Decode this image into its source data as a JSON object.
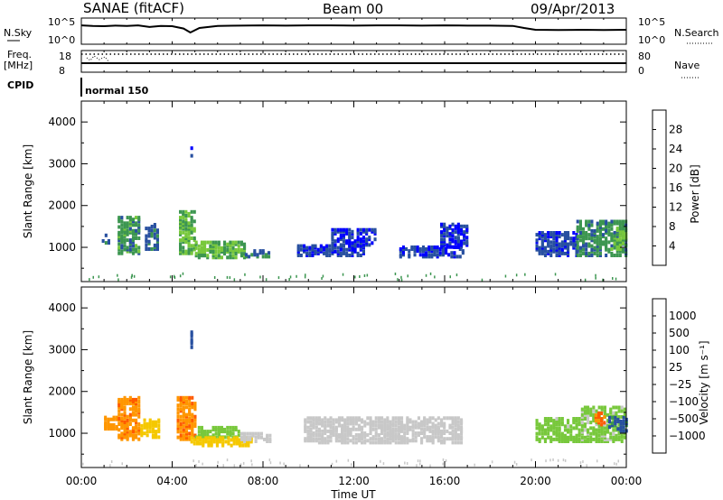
{
  "header": {
    "station": "SANAE (fitACF)",
    "beam": "Beam 00",
    "date": "09/Apr/2013"
  },
  "left_labels": {
    "nsky": "N.Sky",
    "freq_line1": "Freq.",
    "freq_line2": "[MHz]",
    "cpid": "CPID"
  },
  "right_labels": {
    "nsearch": "N.Search",
    "nave": "Nave"
  },
  "cpid_value": "normal 150",
  "chart_data": [
    {
      "type": "line",
      "panel": "noise",
      "left_axis": {
        "ticks": [
          "10^5",
          "10^0"
        ]
      },
      "right_axis": {
        "ticks": [
          "10^5",
          "10^0"
        ]
      },
      "series": [
        {
          "name": "N.Sky",
          "x": [
            0,
            0.5,
            1,
            1.5,
            2,
            2.5,
            3,
            3.5,
            4,
            4.5,
            4.8,
            5.2,
            6,
            7,
            8,
            9,
            10,
            11,
            12,
            13,
            14,
            15,
            16,
            17,
            18,
            19,
            19.5,
            20,
            21,
            22,
            23,
            24
          ],
          "y": [
            0.72,
            0.7,
            0.69,
            0.71,
            0.7,
            0.72,
            0.66,
            0.7,
            0.69,
            0.6,
            0.45,
            0.62,
            0.7,
            0.71,
            0.72,
            0.71,
            0.72,
            0.72,
            0.71,
            0.72,
            0.72,
            0.71,
            0.72,
            0.71,
            0.71,
            0.7,
            0.62,
            0.55,
            0.54,
            0.55,
            0.54,
            0.55
          ]
        }
      ]
    },
    {
      "type": "line",
      "panel": "frequency",
      "left_axis": {
        "ticks": [
          "18",
          "8"
        ]
      },
      "right_axis": {
        "ticks": [
          "80",
          "0"
        ]
      },
      "series": [
        {
          "name": "Freq.",
          "x": [
            0,
            24
          ],
          "y": [
            12,
            12
          ]
        },
        {
          "name": "Nave",
          "x": [
            0,
            24
          ],
          "y": [
            70,
            70
          ]
        }
      ]
    },
    {
      "type": "heatmap",
      "panel": "power",
      "xlabel": "",
      "ylabel": "Slant Range [km]",
      "xlim": [
        0,
        24
      ],
      "ylim": [
        180,
        4500
      ],
      "yticks": [
        "1000",
        "2000",
        "3000",
        "4000"
      ],
      "colorbar": {
        "label": "Power [dB]",
        "ticks": [
          "28",
          "24",
          "20",
          "16",
          "12",
          "8",
          "4"
        ],
        "colors": [
          "#ff0000",
          "#ff5a00",
          "#ff9600",
          "#f5c800",
          "#78c83c",
          "#3c9650",
          "#2850a0",
          "#0000ff"
        ]
      },
      "blobs": [
        {
          "t0": 0.9,
          "t1": 1.2,
          "r0": 1150,
          "r1": 1350,
          "v": 6
        },
        {
          "t0": 1.6,
          "t1": 2.5,
          "r0": 900,
          "r1": 1800,
          "v": 10
        },
        {
          "t0": 2.8,
          "t1": 3.4,
          "r0": 1000,
          "r1": 1600,
          "v": 7
        },
        {
          "t0": 4.3,
          "t1": 5.0,
          "r0": 900,
          "r1": 1900,
          "v": 12
        },
        {
          "t0": 4.8,
          "t1": 4.9,
          "r0": 3100,
          "r1": 3500,
          "v": 6
        },
        {
          "t0": 5.0,
          "t1": 7.2,
          "r0": 800,
          "r1": 1200,
          "v": 12
        },
        {
          "t0": 7.2,
          "t1": 8.3,
          "r0": 820,
          "r1": 1000,
          "v": 7
        },
        {
          "t0": 9.5,
          "t1": 12.5,
          "r0": 850,
          "r1": 1100,
          "v": 5
        },
        {
          "t0": 11.0,
          "t1": 13.0,
          "r0": 1100,
          "r1": 1500,
          "v": 4
        },
        {
          "t0": 14.0,
          "t1": 16.8,
          "r0": 820,
          "r1": 1050,
          "v": 5
        },
        {
          "t0": 15.8,
          "t1": 17.0,
          "r0": 1050,
          "r1": 1600,
          "v": 4
        },
        {
          "t0": 20.0,
          "t1": 21.8,
          "r0": 850,
          "r1": 1400,
          "v": 5
        },
        {
          "t0": 21.8,
          "t1": 24.0,
          "r0": 850,
          "r1": 1700,
          "v": 9
        },
        {
          "t0": 23.3,
          "t1": 24.0,
          "r0": 1000,
          "r1": 1500,
          "v": 12
        }
      ]
    },
    {
      "type": "heatmap",
      "panel": "velocity",
      "xlabel": "Time UT",
      "ylabel": "Slant Range [km]",
      "xlim": [
        0,
        24
      ],
      "ylim": [
        180,
        4500
      ],
      "xticks": [
        "00:00",
        "04:00",
        "08:00",
        "12:00",
        "16:00",
        "20:00",
        "00:00"
      ],
      "yticks": [
        "1000",
        "2000",
        "3000",
        "4000"
      ],
      "colorbar": {
        "label": "Velocity [m s⁻¹]",
        "ticks": [
          "1000",
          "500",
          "100",
          "25",
          "−25",
          "−100",
          "−500",
          "−1000"
        ],
        "colors": [
          "#0000ff",
          "#2850a0",
          "#3c9650",
          "#78c83c",
          "#c8c8c8",
          "#f5c800",
          "#ff9600",
          "#ff5a00",
          "#ff0000"
        ]
      },
      "blobs": [
        {
          "t0": 1.0,
          "t1": 1.6,
          "r0": 1150,
          "r1": 1450,
          "v": -200
        },
        {
          "t0": 1.6,
          "t1": 2.6,
          "r0": 900,
          "r1": 1900,
          "v": -400
        },
        {
          "t0": 2.6,
          "t1": 3.4,
          "r0": 950,
          "r1": 1400,
          "v": -60
        },
        {
          "t0": 4.2,
          "t1": 5.0,
          "r0": 900,
          "r1": 1900,
          "v": -400
        },
        {
          "t0": 4.8,
          "t1": 4.9,
          "r0": 3100,
          "r1": 3500,
          "v": 700
        },
        {
          "t0": 5.0,
          "t1": 7.0,
          "r0": 950,
          "r1": 1200,
          "v": 60
        },
        {
          "t0": 4.8,
          "t1": 7.5,
          "r0": 750,
          "r1": 950,
          "v": -60
        },
        {
          "t0": 7.0,
          "t1": 8.3,
          "r0": 850,
          "r1": 1050,
          "v": 0
        },
        {
          "t0": 9.8,
          "t1": 16.8,
          "r0": 820,
          "r1": 1450,
          "v": 0
        },
        {
          "t0": 20.0,
          "t1": 22.0,
          "r0": 850,
          "r1": 1400,
          "v": 60
        },
        {
          "t0": 22.0,
          "t1": 24.0,
          "r0": 850,
          "r1": 1700,
          "v": 40
        },
        {
          "t0": 23.2,
          "t1": 24.0,
          "r0": 1100,
          "r1": 1450,
          "v": 700
        },
        {
          "t0": 22.6,
          "t1": 23.1,
          "r0": 1250,
          "r1": 1550,
          "v": -600
        }
      ]
    }
  ]
}
